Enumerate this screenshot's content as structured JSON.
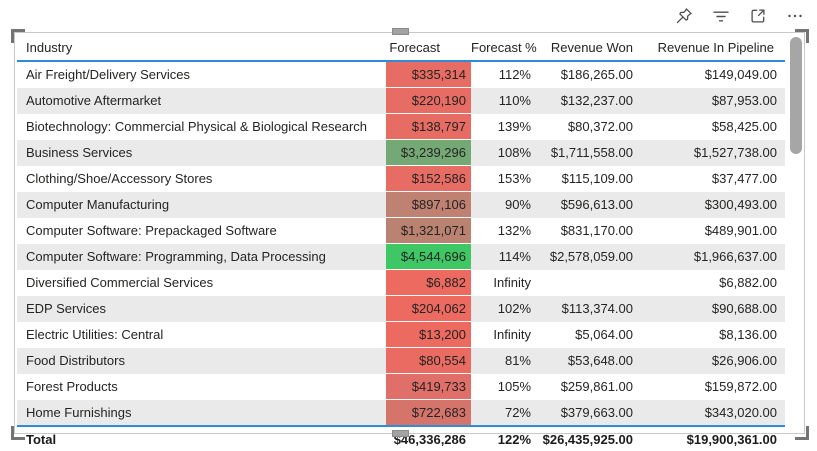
{
  "toolbar": {
    "icons": [
      {
        "name": "pin-icon",
        "label": "Pin visual"
      },
      {
        "name": "filter-icon",
        "label": "Filters"
      },
      {
        "name": "focus-mode-icon",
        "label": "Focus mode"
      },
      {
        "name": "more-options-icon",
        "label": "More options"
      }
    ]
  },
  "table": {
    "columns": [
      "Industry",
      "Forecast",
      "Forecast %",
      "Revenue Won",
      "Revenue In Pipeline"
    ],
    "rows": [
      {
        "industry": "Air Freight/Delivery Services",
        "forecast": "$335,314",
        "forecast_bg": "#E76C63",
        "forecast_pct": "112%",
        "revenue_won": "$186,265.00",
        "revenue_in_pipeline": "$149,049.00"
      },
      {
        "industry": "Automotive Aftermarket",
        "forecast": "$220,190",
        "forecast_bg": "#E76C63",
        "forecast_pct": "110%",
        "revenue_won": "$132,237.00",
        "revenue_in_pipeline": "$87,953.00"
      },
      {
        "industry": "Biotechnology: Commercial Physical & Biological Research",
        "forecast": "$138,797",
        "forecast_bg": "#E76C63",
        "forecast_pct": "139%",
        "revenue_won": "$80,372.00",
        "revenue_in_pipeline": "$58,425.00"
      },
      {
        "industry": "Business Services",
        "forecast": "$3,239,296",
        "forecast_bg": "#74A875",
        "forecast_pct": "108%",
        "revenue_won": "$1,711,558.00",
        "revenue_in_pipeline": "$1,527,738.00"
      },
      {
        "industry": "Clothing/Shoe/Accessory Stores",
        "forecast": "$152,586",
        "forecast_bg": "#E76C63",
        "forecast_pct": "153%",
        "revenue_won": "$115,109.00",
        "revenue_in_pipeline": "$37,477.00"
      },
      {
        "industry": "Computer Manufacturing",
        "forecast": "$897,106",
        "forecast_bg": "#BF8171",
        "forecast_pct": "90%",
        "revenue_won": "$596,613.00",
        "revenue_in_pipeline": "$300,493.00"
      },
      {
        "industry": "Computer Software: Prepackaged Software",
        "forecast": "$1,321,071",
        "forecast_bg": "#BA8270",
        "forecast_pct": "132%",
        "revenue_won": "$831,170.00",
        "revenue_in_pipeline": "$489,901.00"
      },
      {
        "industry": "Computer Software: Programming, Data Processing",
        "forecast": "$4,544,696",
        "forecast_bg": "#3FC765",
        "forecast_pct": "114%",
        "revenue_won": "$2,578,059.00",
        "revenue_in_pipeline": "$1,966,637.00"
      },
      {
        "industry": "Diversified Commercial Services",
        "forecast": "$6,882",
        "forecast_bg": "#EC6A5F",
        "forecast_pct": "Infinity",
        "revenue_won": "",
        "revenue_in_pipeline": "$6,882.00"
      },
      {
        "industry": "EDP Services",
        "forecast": "$204,062",
        "forecast_bg": "#EC6A5F",
        "forecast_pct": "102%",
        "revenue_won": "$113,374.00",
        "revenue_in_pipeline": "$90,688.00"
      },
      {
        "industry": "Electric Utilities: Central",
        "forecast": "$13,200",
        "forecast_bg": "#EC6A5F",
        "forecast_pct": "Infinity",
        "revenue_won": "$5,064.00",
        "revenue_in_pipeline": "$8,136.00"
      },
      {
        "industry": "Food Distributors",
        "forecast": "$80,554",
        "forecast_bg": "#E96B61",
        "forecast_pct": "81%",
        "revenue_won": "$53,648.00",
        "revenue_in_pipeline": "$26,906.00"
      },
      {
        "industry": "Forest Products",
        "forecast": "$419,733",
        "forecast_bg": "#DF6F68",
        "forecast_pct": "105%",
        "revenue_won": "$259,861.00",
        "revenue_in_pipeline": "$159,872.00"
      },
      {
        "industry": "Home Furnishings",
        "forecast": "$722,683",
        "forecast_bg": "#D5746B",
        "forecast_pct": "72%",
        "revenue_won": "$379,663.00",
        "revenue_in_pipeline": "$343,020.00"
      }
    ],
    "total": {
      "label": "Total",
      "forecast": "$46,336,286",
      "forecast_pct": "122%",
      "revenue_won": "$26,435,925.00",
      "revenue_in_pipeline": "$19,900,361.00"
    }
  },
  "colors": {
    "grid_accent_line": "#2E8CD8",
    "banded_row": "#EAEAEA",
    "negative_cell": "#E76C63",
    "neutral_cell": "#BF8171",
    "positive_cell": "#3FC765",
    "icon_gray": "#4F4E4D",
    "scrollbar_thumb": "#A6A6A6"
  }
}
